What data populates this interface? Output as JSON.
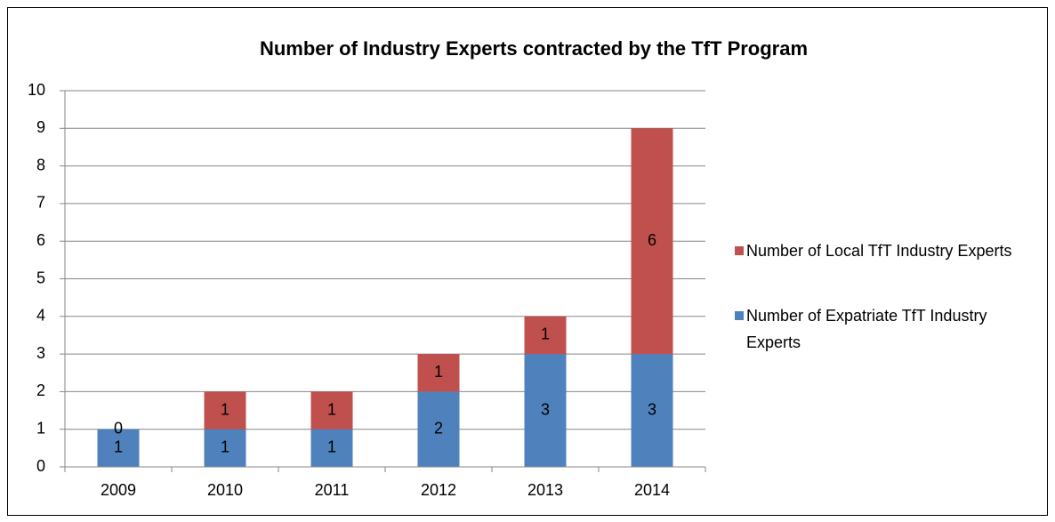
{
  "chart_data": {
    "type": "bar",
    "stacked": true,
    "title": "Number of Industry Experts contracted by the TfT Program",
    "categories": [
      "2009",
      "2010",
      "2011",
      "2012",
      "2013",
      "2014"
    ],
    "series": [
      {
        "name": "Number of Expatriate TfT Industry Experts",
        "color": "#4f81bd",
        "values": [
          1,
          1,
          1,
          2,
          3,
          3
        ]
      },
      {
        "name": "Number of Local TfT Industry Experts",
        "color": "#c0504d",
        "values": [
          0,
          1,
          1,
          1,
          1,
          6
        ]
      }
    ],
    "ylim": [
      0,
      10
    ],
    "yticks": [
      0,
      1,
      2,
      3,
      4,
      5,
      6,
      7,
      8,
      9,
      10
    ],
    "grid": true,
    "legend": "right"
  }
}
